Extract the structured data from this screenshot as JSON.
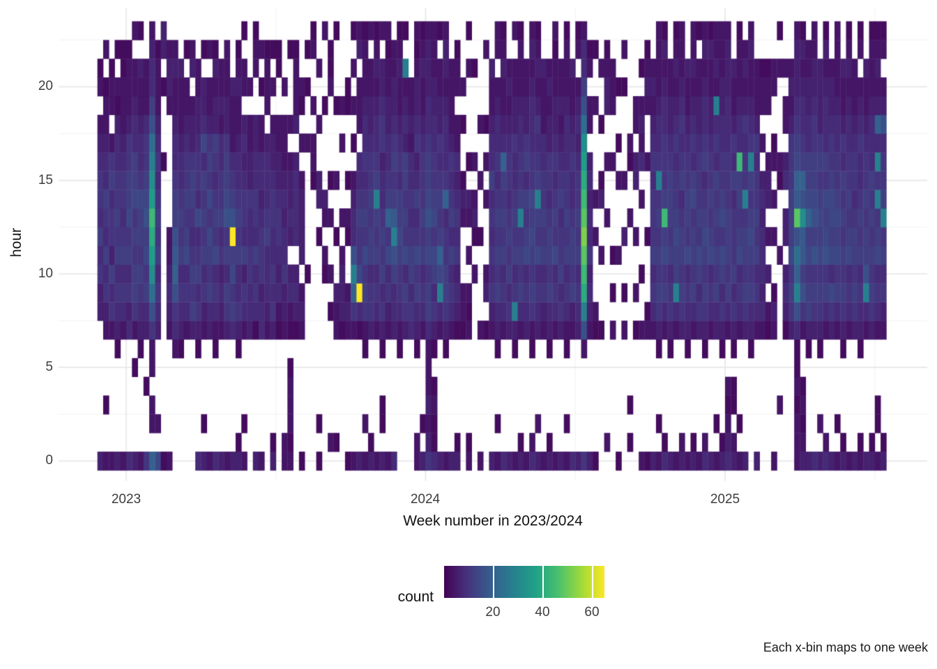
{
  "figure": {
    "caption": "Each x-bin maps to one week"
  },
  "axes": {
    "x": {
      "title": "Week number in 2023/2024",
      "ticks": [
        {
          "label": "2023"
        },
        {
          "label": "2024"
        },
        {
          "label": "2025"
        }
      ]
    },
    "y": {
      "title": "hour",
      "ticks": [
        {
          "label": "0"
        },
        {
          "label": "5"
        },
        {
          "label": "10"
        },
        {
          "label": "15"
        },
        {
          "label": "20"
        }
      ]
    }
  },
  "legend": {
    "title": "count",
    "ticks": [
      {
        "label": "20",
        "value": 20
      },
      {
        "label": "40",
        "value": 40
      },
      {
        "label": "60",
        "value": 60
      }
    ]
  },
  "colors": {
    "background": "#ffffff",
    "grid_major": "#e4e4e4",
    "grid_minor": "#f2f2f2",
    "tick_text": "#3d3d3d",
    "title_text": "#111111"
  },
  "chart_data": {
    "type": "heatmap",
    "title": "",
    "xlabel": "Week number in 2023/2024",
    "ylabel": "hour",
    "caption": "Each x-bin maps to one week",
    "legend_title": "count",
    "legend_tick_values": [
      20,
      40,
      60
    ],
    "x_unit": "one column per ISO week",
    "x_start": "2022-W48",
    "x_end": "2025-W28",
    "x_year_start_cols": {
      "y2023": 5,
      "y2024": 57,
      "y2025": 109
    },
    "y_hour_range": [
      0,
      23
    ],
    "grid": "major+minor, light gray on white",
    "color_scale": {
      "name": "viridis",
      "domain": [
        0,
        65
      ],
      "stops": [
        "#440154",
        "#46327e",
        "#365c8d",
        "#277f8e",
        "#1fa187",
        "#4ac16d",
        "#a0da39",
        "#fde725"
      ]
    },
    "cell_encoding": "each string = one week column; char index i = hour i (0 bottom .. 23 top); '.' = no data (white); otherwise count = base36digit * 2 (e.g. '3'=6, 'a'=20, 'e'=28, 'k'=40, 'x'=66)",
    "weeks": [
      "3.......3354645543 2.21.",
      "2..1...23546456443 221.2",
      "2......2546355465 2.221",
      "3.....134546565544 312.1",
      "2......24546545543 22211",
      "4......43546576655 32221",
      "3....1.256656576644322.2",
      "2.....1345656675443223.1",
      "5...1..346576876554 222.",
      "a.22.2258cgikmigec864432",
      "7.2....345465654543 2221",
      "1...............1...1.332",
      "2......23432 2......2332",
      "......-2458a986654432232",
      "......134546565443 2223.",
      ".......24547656554 322.1",
      ".......-3656545665332.32",
      "4.....135465474554 3322.",
      "3.1....23546565647 433.1",
      "2......34656757565 322.2",
      "4.....124547565456 33231",
      "3......23435465544 2322.",
      "2......35646587665 33222",
      "3......-46576x8654 2223.",
      "31....135446565443 22321",
      "2.1....245364554343.22.1",
      ".......-344554453322.2..",
      "3......145464554433..221",
      "2......-443555434422.1.2",
      ".......23444654443.2221.",
      "31.....-354544554332.2.1",
      ".......124345543322..11.",
      "22.....-23354434322 2.2.",
      "212221.1243.34332.2...1.",
      ".......1343.44443.32221.",
      "1......-232.33332.2.12..",
      "..........1......2..1.1..",
      "...............122.2..21.",
      "1.1.........-1.33..2..2.",
      "..........12.23....1...21",
      ".2......1.2..2.1....211.",
      ".1.....223..1..2...1...1",
      ".......13332.2...2.2...",
      "1......-232..12.1...11..",
      "2......25ae84432.1.2.2.1",
      "3......14x7556544.222.32",
      "2.2...125657565454432221",
      "31.....355466565543322.2",
      "2......2454656e654432321",
      "3.11..1354656544355433.2",
      "2......235475a6544332212",
      "4......34468e9656543322.",
      "......124556766454322321",
      ".......35647565663432e.1",
      ".......-4546654544 2322.",
      "22....134657546435433212",
      "3.1....24546565554322321",
      "532322246657687665443332",
      "41121.135467576554433222",
      "3......24e7a6565453322.1",
      "2.....13566554a544432332",
      "3......24546465453 2222.",
      "31.....134354543422.221.",
      ".......-122...231..1.2..",
      "21.....212.2.23.1....2.1",
      "..........2.132.2....1...",
      "2......-2....1..2..2....",
      ".......1.32...2.2.1...2.",
      "3......23545454644 3223.",
      "2.1...134656565454432.22",
      "4......245465656a4322321",
      "3......35465654554 3232.",
      "2.....13e5465654453322.2",
      "31.....246565e6554432221",
      "2......34547656465 3322.",
      "42....125656767554443232",
      "3.2....3454756e654532321",
      "2......23546565544 2223.",
      "31....134656654553 3232.",
      "2......24547565454332212",
      "3......35465546543 2322.",
      "2.1...124546565544432221",
      "4......23656654454 3223.",
      "3......34546565543432.21",
      "5.....28ekmoqomkigc86442",
      "3......2343544343.22.21.",
      "1......-12...2.2....2..1",
      ".......1...2..31..1..2..",
      ".2...........2..2..3321.",
      ".......-2.1.1....2..222.",
      "1..........2...2.1..1...1",
      ".......2.1..3..2....1.2.",
      ".1.1.........2..12.....",
      ".......-1.2..2..33.22...",
      "2......2..1...2.4232.1..",
      "1......-21...1...2..2321",
      "3......24546555454 3232.",
      "2.1...135656565e54432222",
      "41.....246576m6555443231",
      "3.....135546566654 3322.",
      "2......24e66765545432321",
      "32.....35656654654543222",
      "2.....134547566554 3223.",
      "31.....24656657645432322",
      "2......354675655543322.1",
      "42....135656765465443232",
      "3......24547656554332231",
      "2.1....346565656454e2322",
      "31....135467576554433222",
      "43212..24656665554443332",
      "32.11.135465554645 3223.",
      "2.1....245476566m4432221",
      "3......3565665e55453232.",
      "......1346567656e5432232",
      "3......24546565545 3222.",
      ".......-243444343.2.221.",
      ".......12.3.2.332..221..",
      "2......-231..2.2.21..22.",
      "...2.......2...12....2.11",
      ".......1343.33.43.22.2..",
      ".......35657666555 3232.",
      "222121148eac8o9a76543332",
      "32121..258699g8a65443231",
      "3.....1366576a766443322.",
      "4......35658687665543322",
      "3.2...135657676565 3333.",
      "42.....24658767564443231",
      "3......35747677655 4332.",
      "2.1....24657676554432222",
      "31....135656565645 3223.",
      "2......24547656554432321",
      "3......35656654554 3222.",
      "21....134546565445432.21",
      "3......24e86656554 3223.",
      "31.....35656565644432221",
      "2.11...2454765e5e4a32321",
      "31.....235465e6554832.21"
    ]
  }
}
